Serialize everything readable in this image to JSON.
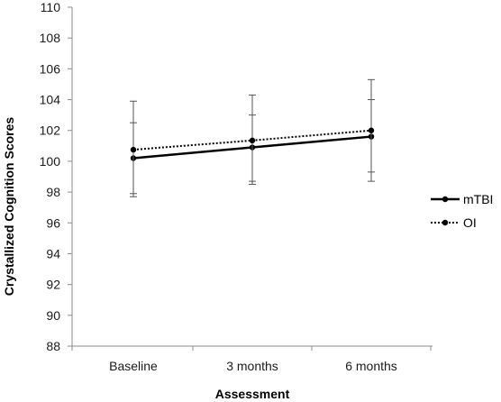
{
  "chart_data": {
    "type": "line",
    "categories": [
      "Baseline",
      "3 months",
      "6 months"
    ],
    "xlabel": "Assessment",
    "ylabel": "Crystallized Cognition Scores",
    "ylim": [
      88,
      110
    ],
    "yticks": [
      88,
      90,
      92,
      94,
      96,
      98,
      100,
      102,
      104,
      106,
      108,
      110
    ],
    "grid": false,
    "legend": "right",
    "series": [
      {
        "name": "mTBI",
        "values": [
          100.2,
          100.9,
          101.6
        ],
        "error_low": [
          97.7,
          98.5,
          98.7
        ],
        "error_high": [
          102.5,
          103.0,
          104.0
        ],
        "line_style": "solid",
        "color": "#000000"
      },
      {
        "name": "OI",
        "values": [
          100.75,
          101.35,
          102.0
        ],
        "error_low": [
          97.9,
          98.7,
          99.3
        ],
        "error_high": [
          103.9,
          104.3,
          105.3
        ],
        "line_style": "dotted",
        "color": "#000000"
      }
    ]
  }
}
